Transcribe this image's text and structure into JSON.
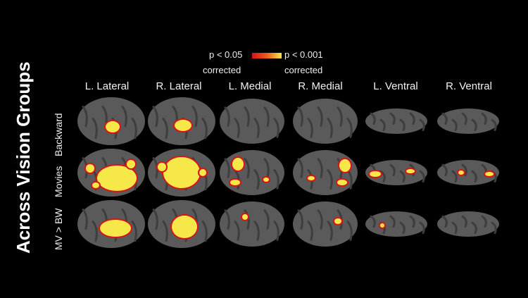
{
  "figure": {
    "title": "Across Vision Groups",
    "legend": {
      "low_label": "p < 0.05",
      "low_sub": "corrected",
      "high_label": "p < 0.001",
      "high_sub": "corrected",
      "colormap": [
        "#d4141a",
        "#f05a1e",
        "#f7e84a"
      ]
    },
    "columns": [
      "L. Lateral",
      "R. Lateral",
      "L. Medial",
      "R. Medial",
      "L. Ventral",
      "R. Ventral"
    ],
    "rows": [
      "Backward",
      "Movies",
      "MV > BW"
    ],
    "colors": {
      "background": "#000000",
      "cortex": "#5a5a5a",
      "sulci": "#3e3e3e",
      "activation_low": "#d4141a",
      "activation_high": "#f7e84a"
    }
  }
}
